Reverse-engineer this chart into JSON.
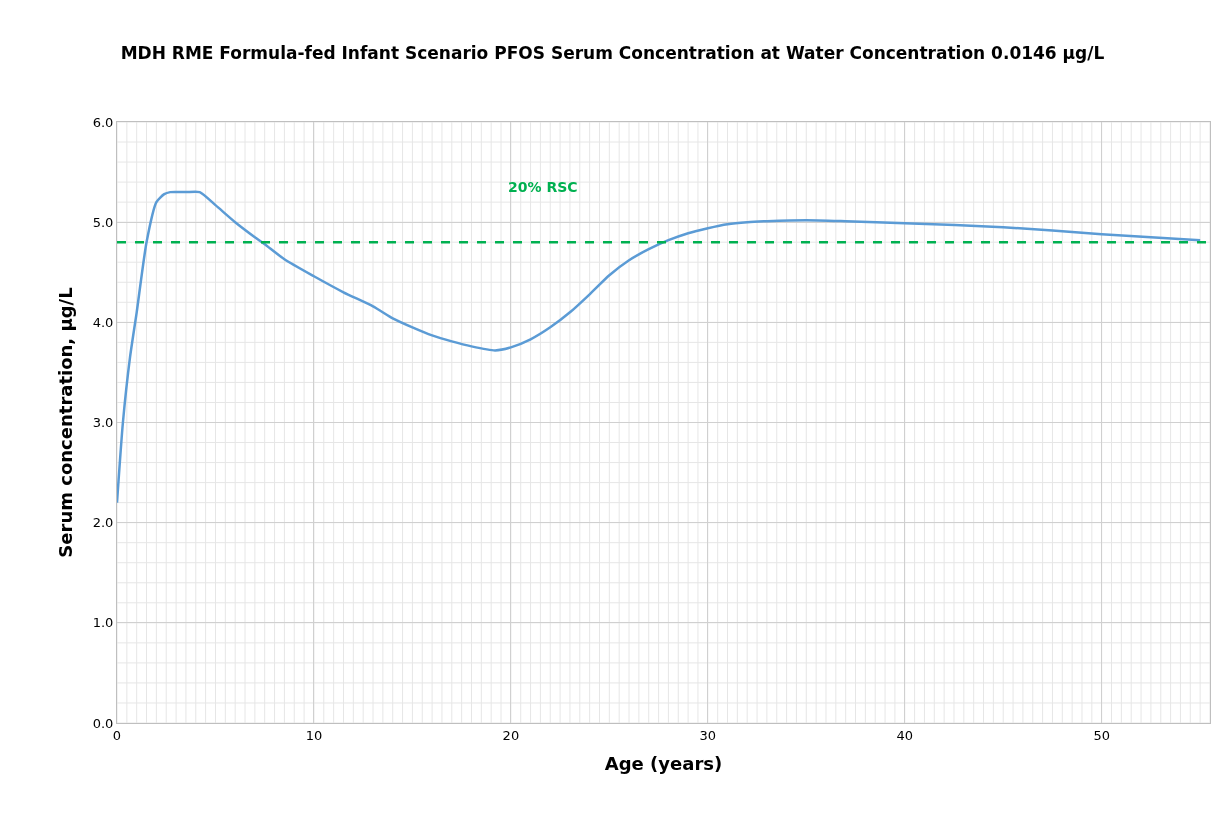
{
  "chart_data": {
    "type": "line",
    "title": "MDH RME Formula-fed Infant Scenario PFOS Serum Concentration at Water Concentration 0.0146 µg/L",
    "xlabel": "Age (years)",
    "ylabel": "Serum concentration, µg/L",
    "series": [
      {
        "color": "#5b9bd5",
        "x": [
          0,
          0.3,
          0.66,
          1,
          1.5,
          2,
          2.4,
          2.7,
          3.5,
          4.2,
          5,
          6,
          7,
          7.5,
          8.5,
          10,
          11.5,
          13,
          14,
          15,
          16,
          17,
          18,
          19.2,
          20,
          21,
          22,
          23,
          24,
          25,
          26,
          27,
          28,
          29,
          30,
          31,
          32,
          33,
          35,
          37,
          40,
          45,
          50,
          55
        ],
        "values": [
          2.2,
          3.0,
          3.65,
          4.1,
          4.8,
          5.2,
          5.28,
          5.3,
          5.3,
          5.3,
          5.17,
          5.0,
          4.85,
          4.78,
          4.63,
          4.46,
          4.3,
          4.16,
          4.04,
          3.95,
          3.87,
          3.81,
          3.76,
          3.72,
          3.75,
          3.83,
          3.95,
          4.1,
          4.28,
          4.47,
          4.62,
          4.73,
          4.82,
          4.89,
          4.94,
          4.98,
          5.0,
          5.01,
          5.02,
          5.01,
          4.99,
          4.95,
          4.88,
          4.82
        ]
      }
    ],
    "xlim": [
      0,
      55.5
    ],
    "xticks": [
      0,
      10,
      20,
      30,
      40,
      50
    ],
    "ylim": [
      0,
      6
    ],
    "yticks": [
      {
        "value": 0,
        "label": "0.0"
      },
      {
        "value": 1,
        "label": "1.0"
      },
      {
        "value": 2,
        "label": "2.0"
      },
      {
        "value": 3,
        "label": "3.0"
      },
      {
        "value": 4,
        "label": "4.0"
      },
      {
        "value": 5,
        "label": "5.0"
      },
      {
        "value": 6,
        "label": "6.0"
      }
    ],
    "ref_lines": [
      {
        "axis": "y",
        "value": 4.8,
        "label": "20% RSC",
        "color": "#00b050",
        "line_style": "dashed"
      }
    ],
    "grid": true,
    "line_style": "solid"
  }
}
